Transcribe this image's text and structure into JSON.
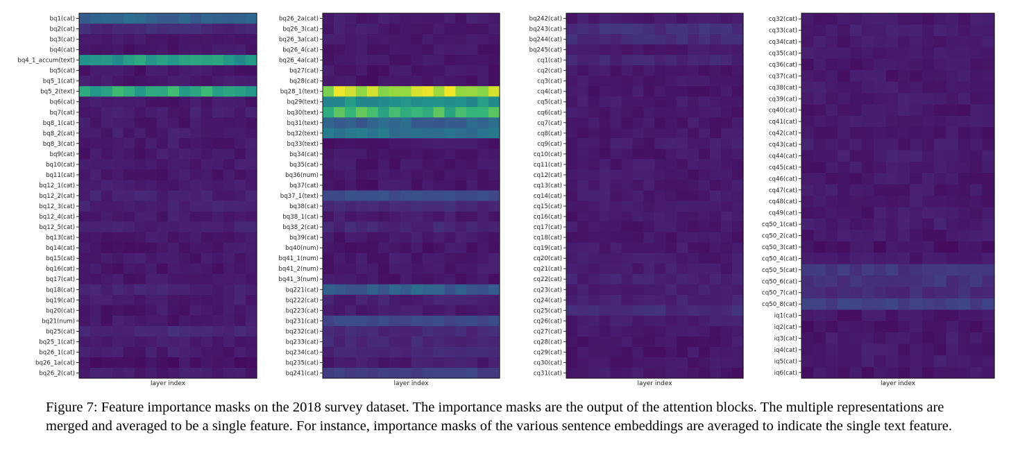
{
  "caption": "Figure 7: Feature importance masks on the 2018 survey dataset. The importance masks are the output of the attention blocks. The multiple representations are merged and averaged to be a single feature. For instance, importance masks of the various sentence embeddings are averaged to indicate the single text feature.",
  "chart_data": [
    {
      "type": "heatmap",
      "xlabel": "layer index",
      "columns": 16,
      "colormap": "viridis",
      "rows": [
        {
          "label": "bq1(cat)",
          "value": 0.42
        },
        {
          "label": "bq2(cat)",
          "value": 0.15
        },
        {
          "label": "bq3(cat)",
          "value": 0.08
        },
        {
          "label": "bq4(cat)",
          "value": 0.08
        },
        {
          "label": "bq4_1_accum(text)",
          "value": 0.66
        },
        {
          "label": "bq5(cat)",
          "value": 0.08
        },
        {
          "label": "bq5_1(cat)",
          "value": 0.09
        },
        {
          "label": "bq5_2(text)",
          "value": 0.7
        },
        {
          "label": "bq6(cat)",
          "value": 0.09
        },
        {
          "label": "bq7(cat)",
          "value": 0.1
        },
        {
          "label": "bq8_1(cat)",
          "value": 0.09
        },
        {
          "label": "bq8_2(cat)",
          "value": 0.1
        },
        {
          "label": "bq8_3(cat)",
          "value": 0.09
        },
        {
          "label": "bq9(cat)",
          "value": 0.09
        },
        {
          "label": "bq10(cat)",
          "value": 0.09
        },
        {
          "label": "bq11(cat)",
          "value": 0.09
        },
        {
          "label": "bq12_1(cat)",
          "value": 0.1
        },
        {
          "label": "bq12_2(cat)",
          "value": 0.12
        },
        {
          "label": "bq12_3(cat)",
          "value": 0.12
        },
        {
          "label": "bq12_4(cat)",
          "value": 0.1
        },
        {
          "label": "bq12_5(cat)",
          "value": 0.12
        },
        {
          "label": "bq13(cat)",
          "value": 0.09
        },
        {
          "label": "bq14(cat)",
          "value": 0.08
        },
        {
          "label": "bq15(cat)",
          "value": 0.09
        },
        {
          "label": "bq16(cat)",
          "value": 0.08
        },
        {
          "label": "bq17(cat)",
          "value": 0.09
        },
        {
          "label": "bq18(cat)",
          "value": 0.12
        },
        {
          "label": "bq19(cat)",
          "value": 0.1
        },
        {
          "label": "bq20(cat)",
          "value": 0.09
        },
        {
          "label": "bq21(num)",
          "value": 0.09
        },
        {
          "label": "bq25(cat)",
          "value": 0.15
        },
        {
          "label": "bq25_1(cat)",
          "value": 0.1
        },
        {
          "label": "bq26_1(cat)",
          "value": 0.1
        },
        {
          "label": "bq26_1a(cat)",
          "value": 0.07
        },
        {
          "label": "bq26_2(cat)",
          "value": 0.1
        }
      ]
    },
    {
      "type": "heatmap",
      "xlabel": "layer index",
      "columns": 16,
      "colormap": "viridis",
      "rows": [
        {
          "label": "bq26_2a(cat)",
          "value": 0.1
        },
        {
          "label": "bq26_3(cat)",
          "value": 0.1
        },
        {
          "label": "bq26_3a(cat)",
          "value": 0.09
        },
        {
          "label": "bq26_4(cat)",
          "value": 0.09
        },
        {
          "label": "bq26_4a(cat)",
          "value": 0.09
        },
        {
          "label": "bq27(cat)",
          "value": 0.08
        },
        {
          "label": "bq28(cat)",
          "value": 0.08
        },
        {
          "label": "bq28_1(text)",
          "value": 0.92
        },
        {
          "label": "bq29(text)",
          "value": 0.62
        },
        {
          "label": "bq30(text)",
          "value": 0.75
        },
        {
          "label": "bq31(text)",
          "value": 0.4
        },
        {
          "label": "bq32(text)",
          "value": 0.48
        },
        {
          "label": "bq33(text)",
          "value": 0.08
        },
        {
          "label": "bq34(cat)",
          "value": 0.08
        },
        {
          "label": "bq35(cat)",
          "value": 0.09
        },
        {
          "label": "bq36(num)",
          "value": 0.08
        },
        {
          "label": "bq37(cat)",
          "value": 0.08
        },
        {
          "label": "bq37_1(text)",
          "value": 0.3
        },
        {
          "label": "bq38(cat)",
          "value": 0.15
        },
        {
          "label": "bq38_1(cat)",
          "value": 0.1
        },
        {
          "label": "bq38_2(cat)",
          "value": 0.14
        },
        {
          "label": "bq39(cat)",
          "value": 0.09
        },
        {
          "label": "bq40(num)",
          "value": 0.08
        },
        {
          "label": "bq41_1(num)",
          "value": 0.09
        },
        {
          "label": "bq41_2(num)",
          "value": 0.09
        },
        {
          "label": "bq41_3(num)",
          "value": 0.08
        },
        {
          "label": "bq221(cat)",
          "value": 0.38
        },
        {
          "label": "bq222(cat)",
          "value": 0.12
        },
        {
          "label": "bq223(cat)",
          "value": 0.1
        },
        {
          "label": "bq231(cat)",
          "value": 0.28
        },
        {
          "label": "bq232(cat)",
          "value": 0.15
        },
        {
          "label": "bq233(cat)",
          "value": 0.14
        },
        {
          "label": "bq234(cat)",
          "value": 0.14
        },
        {
          "label": "bq235(cat)",
          "value": 0.1
        },
        {
          "label": "bq241(cat)",
          "value": 0.24
        }
      ]
    },
    {
      "type": "heatmap",
      "xlabel": "layer index",
      "columns": 16,
      "colormap": "viridis",
      "rows": [
        {
          "label": "bq242(cat)",
          "value": 0.1
        },
        {
          "label": "bq243(cat)",
          "value": 0.18
        },
        {
          "label": "bq244(cat)",
          "value": 0.16
        },
        {
          "label": "bq245(cat)",
          "value": 0.1
        },
        {
          "label": "cq1(cat)",
          "value": 0.14
        },
        {
          "label": "cq2(cat)",
          "value": 0.09
        },
        {
          "label": "cq3(cat)",
          "value": 0.09
        },
        {
          "label": "cq4(cat)",
          "value": 0.09
        },
        {
          "label": "cq5(cat)",
          "value": 0.1
        },
        {
          "label": "cq6(cat)",
          "value": 0.09
        },
        {
          "label": "cq7(cat)",
          "value": 0.09
        },
        {
          "label": "cq8(cat)",
          "value": 0.09
        },
        {
          "label": "cq9(cat)",
          "value": 0.1
        },
        {
          "label": "cq10(cat)",
          "value": 0.09
        },
        {
          "label": "cq11(cat)",
          "value": 0.09
        },
        {
          "label": "cq12(cat)",
          "value": 0.09
        },
        {
          "label": "cq13(cat)",
          "value": 0.09
        },
        {
          "label": "cq14(cat)",
          "value": 0.1
        },
        {
          "label": "cq15(cat)",
          "value": 0.09
        },
        {
          "label": "cq16(cat)",
          "value": 0.09
        },
        {
          "label": "cq17(cat)",
          "value": 0.09
        },
        {
          "label": "cq18(cat)",
          "value": 0.08
        },
        {
          "label": "cq19(cat)",
          "value": 0.09
        },
        {
          "label": "cq20(cat)",
          "value": 0.1
        },
        {
          "label": "cq21(cat)",
          "value": 0.1
        },
        {
          "label": "cq22(cat)",
          "value": 0.12
        },
        {
          "label": "cq23(cat)",
          "value": 0.12
        },
        {
          "label": "cq24(cat)",
          "value": 0.12
        },
        {
          "label": "cq25(cat)",
          "value": 0.16
        },
        {
          "label": "cq26(cat)",
          "value": 0.1
        },
        {
          "label": "cq27(cat)",
          "value": 0.09
        },
        {
          "label": "cq28(cat)",
          "value": 0.09
        },
        {
          "label": "cq29(cat)",
          "value": 0.08
        },
        {
          "label": "cq30(cat)",
          "value": 0.08
        },
        {
          "label": "cq31(cat)",
          "value": 0.09
        }
      ]
    },
    {
      "type": "heatmap",
      "xlabel": "layer index",
      "columns": 16,
      "colormap": "viridis",
      "rows": [
        {
          "label": "cq32(cat)",
          "value": 0.09
        },
        {
          "label": "cq33(cat)",
          "value": 0.1
        },
        {
          "label": "cq34(cat)",
          "value": 0.1
        },
        {
          "label": "cq35(cat)",
          "value": 0.1
        },
        {
          "label": "cq36(cat)",
          "value": 0.09
        },
        {
          "label": "cq37(cat)",
          "value": 0.09
        },
        {
          "label": "cq38(cat)",
          "value": 0.1
        },
        {
          "label": "cq39(cat)",
          "value": 0.1
        },
        {
          "label": "cq40(cat)",
          "value": 0.09
        },
        {
          "label": "cq41(cat)",
          "value": 0.09
        },
        {
          "label": "cq42(cat)",
          "value": 0.09
        },
        {
          "label": "cq43(cat)",
          "value": 0.1
        },
        {
          "label": "cq44(cat)",
          "value": 0.1
        },
        {
          "label": "cq45(cat)",
          "value": 0.09
        },
        {
          "label": "cq46(cat)",
          "value": 0.09
        },
        {
          "label": "cq47(cat)",
          "value": 0.09
        },
        {
          "label": "cq48(cat)",
          "value": 0.09
        },
        {
          "label": "cq49(cat)",
          "value": 0.09
        },
        {
          "label": "cq50_1(cat)",
          "value": 0.1
        },
        {
          "label": "cq50_2(cat)",
          "value": 0.09
        },
        {
          "label": "cq50_3(cat)",
          "value": 0.07
        },
        {
          "label": "cq50_4(cat)",
          "value": 0.1
        },
        {
          "label": "cq50_5(cat)",
          "value": 0.2
        },
        {
          "label": "cq50_6(cat)",
          "value": 0.19
        },
        {
          "label": "cq50_7(cat)",
          "value": 0.16
        },
        {
          "label": "cq50_8(cat)",
          "value": 0.24
        },
        {
          "label": "iq1(cat)",
          "value": 0.08
        },
        {
          "label": "iq2(cat)",
          "value": 0.08
        },
        {
          "label": "iq3(cat)",
          "value": 0.09
        },
        {
          "label": "iq4(cat)",
          "value": 0.09
        },
        {
          "label": "iq5(cat)",
          "value": 0.09
        },
        {
          "label": "iq6(cat)",
          "value": 0.08
        }
      ]
    }
  ]
}
